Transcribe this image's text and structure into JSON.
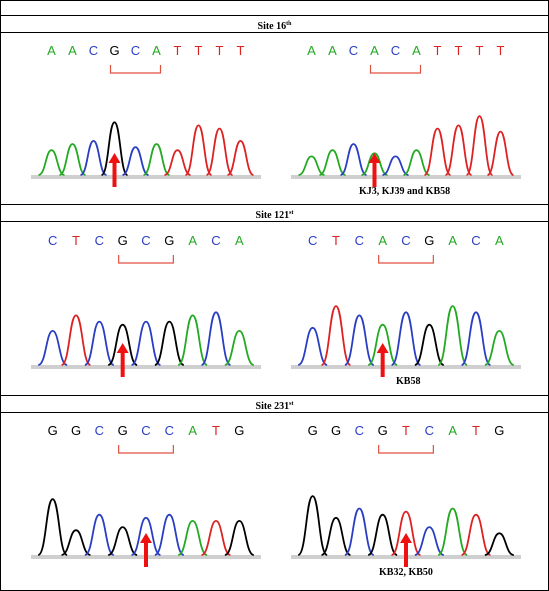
{
  "colors": {
    "A": "#22aa22",
    "C": "#2a3ec4",
    "G": "#000000",
    "T": "#dd2222",
    "bracket": "#e05040",
    "arrow": "#ee1111"
  },
  "sites": [
    {
      "title": "Site 16",
      "title_sup": "th",
      "panels": [
        {
          "bases": "AACGCATTTT",
          "bracket": [
            4,
            6
          ],
          "arrow_base": 4,
          "label": "",
          "heights": [
            0.4,
            0.5,
            0.55,
            0.85,
            0.45,
            0.5,
            0.4,
            0.8,
            0.75,
            0.55
          ]
        },
        {
          "bases": "AACACATTTT",
          "bracket": [
            4,
            6
          ],
          "arrow_base": 4,
          "label": "KJ3, KJ39 and KB58",
          "heights": [
            0.3,
            0.4,
            0.5,
            0.35,
            0.3,
            0.4,
            0.75,
            0.8,
            0.95,
            0.7
          ]
        }
      ]
    },
    {
      "title": "Site 121",
      "title_sup": "st",
      "panels": [
        {
          "bases": "CTCGCGACA",
          "bracket": [
            4,
            6
          ],
          "arrow_base": 4,
          "label": "",
          "heights": [
            0.55,
            0.8,
            0.7,
            0.65,
            0.7,
            0.7,
            0.8,
            0.85,
            0.55
          ]
        },
        {
          "bases": "CTCACGACA",
          "bracket": [
            4,
            6
          ],
          "arrow_base": 4,
          "label": "KB58",
          "heights": [
            0.6,
            0.95,
            0.8,
            0.65,
            0.85,
            0.65,
            0.95,
            0.85,
            0.55
          ]
        }
      ]
    },
    {
      "title": "Site 231",
      "title_sup": "st",
      "panels": [
        {
          "bases": "GGCGCCATG",
          "bracket": [
            4,
            6
          ],
          "arrow_base": 5,
          "label": "",
          "heights": [
            0.9,
            0.4,
            0.65,
            0.45,
            0.6,
            0.65,
            0.55,
            0.55,
            0.55
          ]
        },
        {
          "bases": "GGCGTCATG",
          "bracket": [
            4,
            6
          ],
          "arrow_base": 5,
          "label": "KB32, KB50",
          "heights": [
            0.95,
            0.6,
            0.75,
            0.65,
            0.7,
            0.45,
            0.75,
            0.65,
            0.35
          ]
        }
      ]
    }
  ]
}
